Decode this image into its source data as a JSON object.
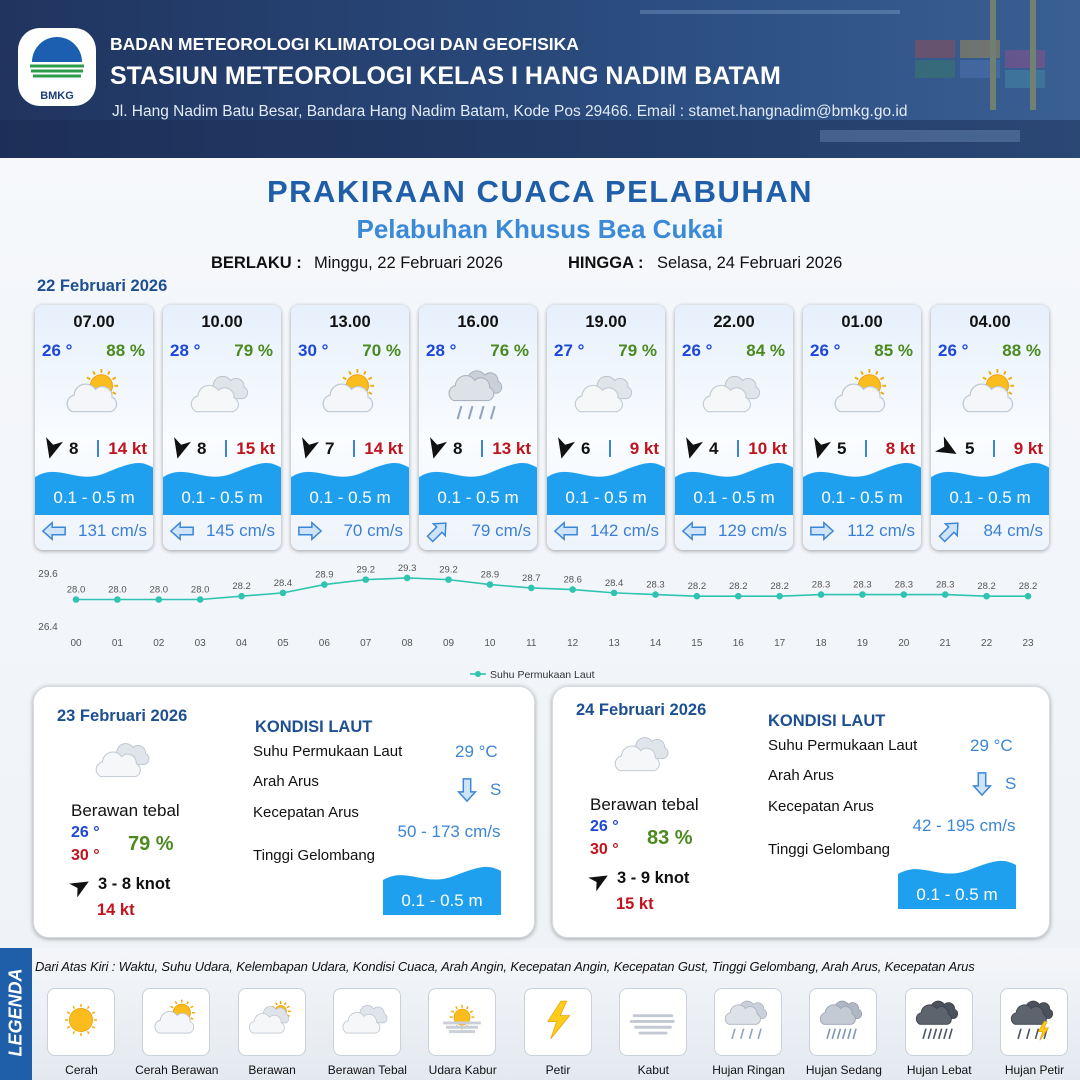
{
  "header": {
    "logo_text": "BMKG",
    "org": "BADAN METEOROLOGI KLIMATOLOGI DAN GEOFISIKA",
    "station": "STASIUN METEOROLOGI KELAS I HANG NADIM BATAM",
    "address": "Jl. Hang Nadim Batu Besar, Bandara Hang Nadim Batam, Kode Pos 29466. Email : stamet.hangnadim@bmkg.go.id"
  },
  "title": "PRAKIRAAN CUACA PELABUHAN",
  "subtitle": "Pelabuhan Khusus Bea Cukai",
  "validity": {
    "from_label": "BERLAKU :",
    "from": "Minggu, 22 Februari 2026",
    "to_label": "HINGGA :",
    "to": "Selasa, 24 Februari 2026"
  },
  "day1": {
    "date": "22 Februari 2026",
    "cards": [
      {
        "time": "07.00",
        "temp": "26 °",
        "humidity": "88 %",
        "icon": "cerah-berawan",
        "wind_dir": "down",
        "wind": "8",
        "gust": "14 kt",
        "wave": "0.1 - 0.5 m",
        "current_dir": "left",
        "current": "131 cm/s"
      },
      {
        "time": "10.00",
        "temp": "28 °",
        "humidity": "79 %",
        "icon": "berawan-tebal",
        "wind_dir": "down",
        "wind": "8",
        "gust": "15 kt",
        "wave": "0.1 - 0.5 m",
        "current_dir": "left",
        "current": "145 cm/s"
      },
      {
        "time": "13.00",
        "temp": "30 °",
        "humidity": "70 %",
        "icon": "cerah-berawan",
        "wind_dir": "down",
        "wind": "7",
        "gust": "14 kt",
        "wave": "0.1 - 0.5 m",
        "current_dir": "right",
        "current": "70 cm/s"
      },
      {
        "time": "16.00",
        "temp": "28 °",
        "humidity": "76 %",
        "icon": "hujan-ringan",
        "wind_dir": "down",
        "wind": "8",
        "gust": "13 kt",
        "wave": "0.1 - 0.5 m",
        "current_dir": "up-right",
        "current": "79 cm/s"
      },
      {
        "time": "19.00",
        "temp": "27 °",
        "humidity": "79 %",
        "icon": "berawan-tebal",
        "wind_dir": "down",
        "wind": "6",
        "gust": "9 kt",
        "wave": "0.1 - 0.5 m",
        "current_dir": "left",
        "current": "142 cm/s"
      },
      {
        "time": "22.00",
        "temp": "26 °",
        "humidity": "84 %",
        "icon": "berawan-tebal",
        "wind_dir": "down",
        "wind": "4",
        "gust": "10 kt",
        "wave": "0.1 - 0.5 m",
        "current_dir": "left",
        "current": "129 cm/s"
      },
      {
        "time": "01.00",
        "temp": "26 °",
        "humidity": "85 %",
        "icon": "cerah-berawan",
        "wind_dir": "down",
        "wind": "5",
        "gust": "8 kt",
        "wave": "0.1 - 0.5 m",
        "current_dir": "right",
        "current": "112 cm/s"
      },
      {
        "time": "04.00",
        "temp": "26 °",
        "humidity": "88 %",
        "icon": "cerah-berawan",
        "wind_dir": "down-right",
        "wind": "5",
        "gust": "9 kt",
        "wave": "0.1 - 0.5 m",
        "current_dir": "up-right",
        "current": "84 cm/s"
      }
    ]
  },
  "chart_data": {
    "type": "line",
    "categories": [
      "00",
      "01",
      "02",
      "03",
      "04",
      "05",
      "06",
      "07",
      "08",
      "09",
      "10",
      "11",
      "12",
      "13",
      "14",
      "15",
      "16",
      "17",
      "18",
      "19",
      "20",
      "21",
      "22",
      "23"
    ],
    "series": [
      {
        "name": "Suhu Permukaan Laut",
        "color": "#2ec4b0",
        "values": [
          28.0,
          28.0,
          28.0,
          28.0,
          28.2,
          28.4,
          28.9,
          29.2,
          29.3,
          29.2,
          28.9,
          28.7,
          28.6,
          28.4,
          28.3,
          28.2,
          28.2,
          28.2,
          28.3,
          28.3,
          28.3,
          28.3,
          28.2,
          28.2
        ],
        "value_labels": [
          "28.0",
          "28.0",
          "28.0",
          "28.0",
          "28.2",
          "28.4",
          "28.9",
          "29.2",
          "29.3",
          "29.2",
          "28.9",
          "28.7",
          "28.6",
          "28.4",
          "28.3",
          "28.2",
          "28.2",
          "28.2",
          "28.3",
          "28.3",
          "28.3",
          "28.3",
          "28.2",
          "28.2"
        ]
      }
    ],
    "ylim": [
      26.4,
      29.6
    ],
    "yticks": [
      26.4,
      29.6
    ],
    "grid": false
  },
  "days": [
    {
      "date": "23 Februari 2026",
      "icon": "berawan-tebal",
      "weather": "Berawan tebal",
      "tmin": "26 °",
      "tmax": "30 °",
      "humidity": "79 %",
      "wind_dir": "up-right",
      "wind": "3 - 8 knot",
      "gust": "14 kt",
      "sea_title": "KONDISI LAUT",
      "sst_label": "Suhu Permukaan Laut",
      "sst": "29 °C",
      "current_dir_label": "Arah Arus",
      "current_arrow": "down",
      "current_dir": "S",
      "current_speed_label": "Kecepatan Arus",
      "current_speed": "50 - 173 cm/s",
      "wave_label": "Tinggi Gelombang",
      "wave": "0.1 - 0.5 m"
    },
    {
      "date": "24 Februari 2026",
      "icon": "berawan-tebal",
      "weather": "Berawan tebal",
      "tmin": "26 °",
      "tmax": "30 °",
      "humidity": "83 %",
      "wind_dir": "up-right",
      "wind": "3 - 9 knot",
      "gust": "15 kt",
      "sea_title": "KONDISI LAUT",
      "sst_label": "Suhu Permukaan Laut",
      "sst": "29 °C",
      "current_dir_label": "Arah Arus",
      "current_arrow": "down",
      "current_dir": "S",
      "current_speed_label": "Kecepatan Arus",
      "current_speed": "42 - 195 cm/s",
      "wave_label": "Tinggi Gelombang",
      "wave": "0.1 - 0.5 m"
    }
  ],
  "legend": {
    "title": "LEGENDA",
    "note": "Dari Atas Kiri : Waktu, Suhu Udara, Kelembapan Udara, Kondisi Cuaca, Arah Angin, Kecepatan Angin, Kecepatan Gust, Tinggi Gelombang, Arah Arus, Kecepatan Arus",
    "items": [
      {
        "label": "Cerah",
        "icon": "cerah"
      },
      {
        "label": "Cerah Berawan",
        "icon": "cerah-berawan"
      },
      {
        "label": "Berawan",
        "icon": "berawan"
      },
      {
        "label": "Berawan Tebal",
        "icon": "berawan-tebal"
      },
      {
        "label": "Udara Kabur",
        "icon": "udara-kabur"
      },
      {
        "label": "Petir",
        "icon": "petir"
      },
      {
        "label": "Kabut",
        "icon": "kabut"
      },
      {
        "label": "Hujan Ringan",
        "icon": "hujan-ringan"
      },
      {
        "label": "Hujan Sedang",
        "icon": "hujan-sedang"
      },
      {
        "label": "Hujan Lebat",
        "icon": "hujan-lebat"
      },
      {
        "label": "Hujan Petir",
        "icon": "hujan-petir"
      }
    ]
  }
}
